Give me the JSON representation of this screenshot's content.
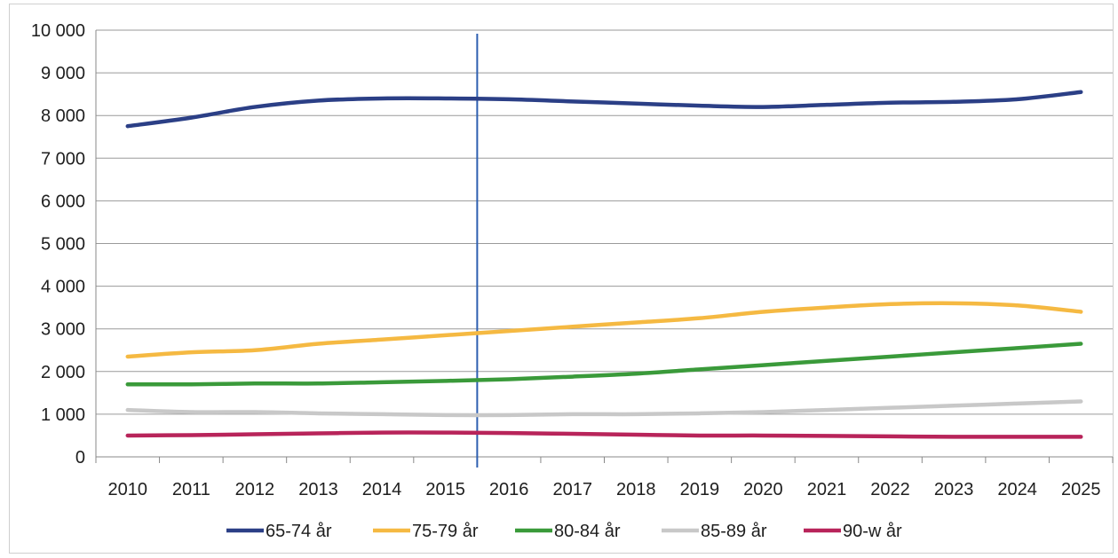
{
  "chart_data": {
    "type": "line",
    "title": "",
    "xlabel": "",
    "ylabel": "",
    "x": [
      "2010",
      "2011",
      "2012",
      "2013",
      "2014",
      "2015",
      "2016",
      "2017",
      "2018",
      "2019",
      "2020",
      "2021",
      "2022",
      "2023",
      "2024",
      "2025"
    ],
    "ylim": [
      0,
      10000
    ],
    "yticks": [
      0,
      1000,
      2000,
      3000,
      4000,
      5000,
      6000,
      7000,
      8000,
      9000,
      10000
    ],
    "ytick_labels": [
      "0",
      "1 000",
      "2 000",
      "3 000",
      "4 000",
      "5 000",
      "6 000",
      "7 000",
      "8 000",
      "9 000",
      "10 000"
    ],
    "grid": true,
    "legend_position": "bottom",
    "marker_line_between": [
      "2015",
      "2016"
    ],
    "series": [
      {
        "name": "65-74 år",
        "color": "#2b3f86",
        "values": [
          7750,
          7950,
          8200,
          8350,
          8400,
          8400,
          8380,
          8330,
          8280,
          8230,
          8200,
          8250,
          8300,
          8320,
          8380,
          8550
        ]
      },
      {
        "name": "75-79 år",
        "color": "#f5b942",
        "values": [
          2350,
          2450,
          2500,
          2650,
          2750,
          2850,
          2950,
          3050,
          3150,
          3250,
          3400,
          3500,
          3580,
          3600,
          3550,
          3400
        ]
      },
      {
        "name": "80-84 år",
        "color": "#3a9a3a",
        "values": [
          1700,
          1700,
          1720,
          1720,
          1750,
          1780,
          1820,
          1880,
          1950,
          2050,
          2150,
          2250,
          2350,
          2450,
          2550,
          2650
        ]
      },
      {
        "name": "85-89 år",
        "color": "#c8c8c8",
        "values": [
          1100,
          1050,
          1050,
          1020,
          1000,
          980,
          980,
          1000,
          1000,
          1020,
          1050,
          1100,
          1150,
          1200,
          1250,
          1300
        ]
      },
      {
        "name": "90-w år",
        "color": "#b8245a",
        "values": [
          500,
          510,
          530,
          550,
          570,
          570,
          560,
          540,
          520,
          500,
          500,
          490,
          480,
          470,
          470,
          470
        ]
      }
    ]
  }
}
